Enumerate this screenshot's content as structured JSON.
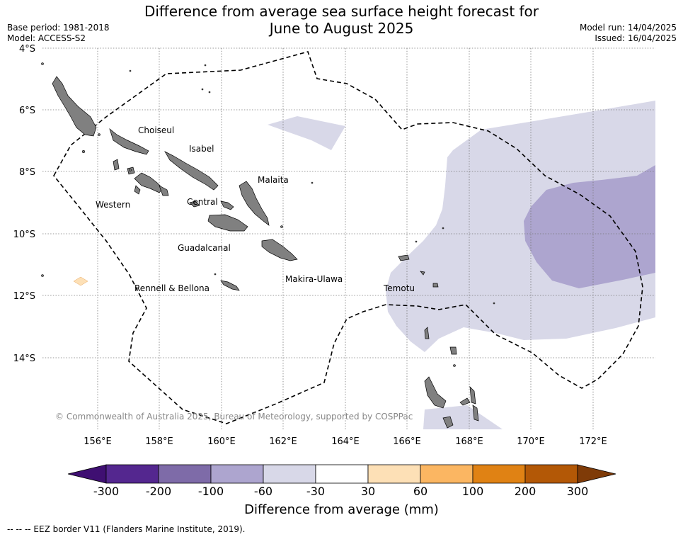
{
  "title_line1": "Difference from average sea surface height forecast for",
  "title_line2": "June to August 2025",
  "base_period": "Base period: 1981-2018",
  "model": "Model: ACCESS-S2",
  "model_run": "Model run: 14/04/2025",
  "issued": "Issued: 16/04/2025",
  "copyright": "© Commonwealth of Australia 2025, Bureau of Meteorology, supported by COSPPac",
  "lat_labels": [
    "4°S",
    "6°S",
    "8°S",
    "10°S",
    "12°S",
    "14°S"
  ],
  "lon_labels": [
    "156°E",
    "158°E",
    "160°E",
    "162°E",
    "164°E",
    "166°E",
    "168°E",
    "170°E",
    "172°E"
  ],
  "place_labels": [
    "Choiseul",
    "Isabel",
    "Malaita",
    "Western",
    "Central",
    "Guadalcanal",
    "Makira-Ulawa",
    "Rennell & Bellona",
    "Temotu"
  ],
  "colorbar": {
    "title": "Difference from average (mm)",
    "tick_labels": [
      "-300",
      "-200",
      "-100",
      "-60",
      "-30",
      "30",
      "60",
      "100",
      "200",
      "300"
    ],
    "colors": [
      "#3f0f72",
      "#54278f",
      "#7e6ba8",
      "#ada5cf",
      "#d8d8e8",
      "#ffffff",
      "#fde0b6",
      "#fbb662",
      "#e08214",
      "#b35806",
      "#7f3b08"
    ]
  },
  "eez_note": "--  --  -- EEZ border V11 (Flanders Marine Institute, 2019)."
}
